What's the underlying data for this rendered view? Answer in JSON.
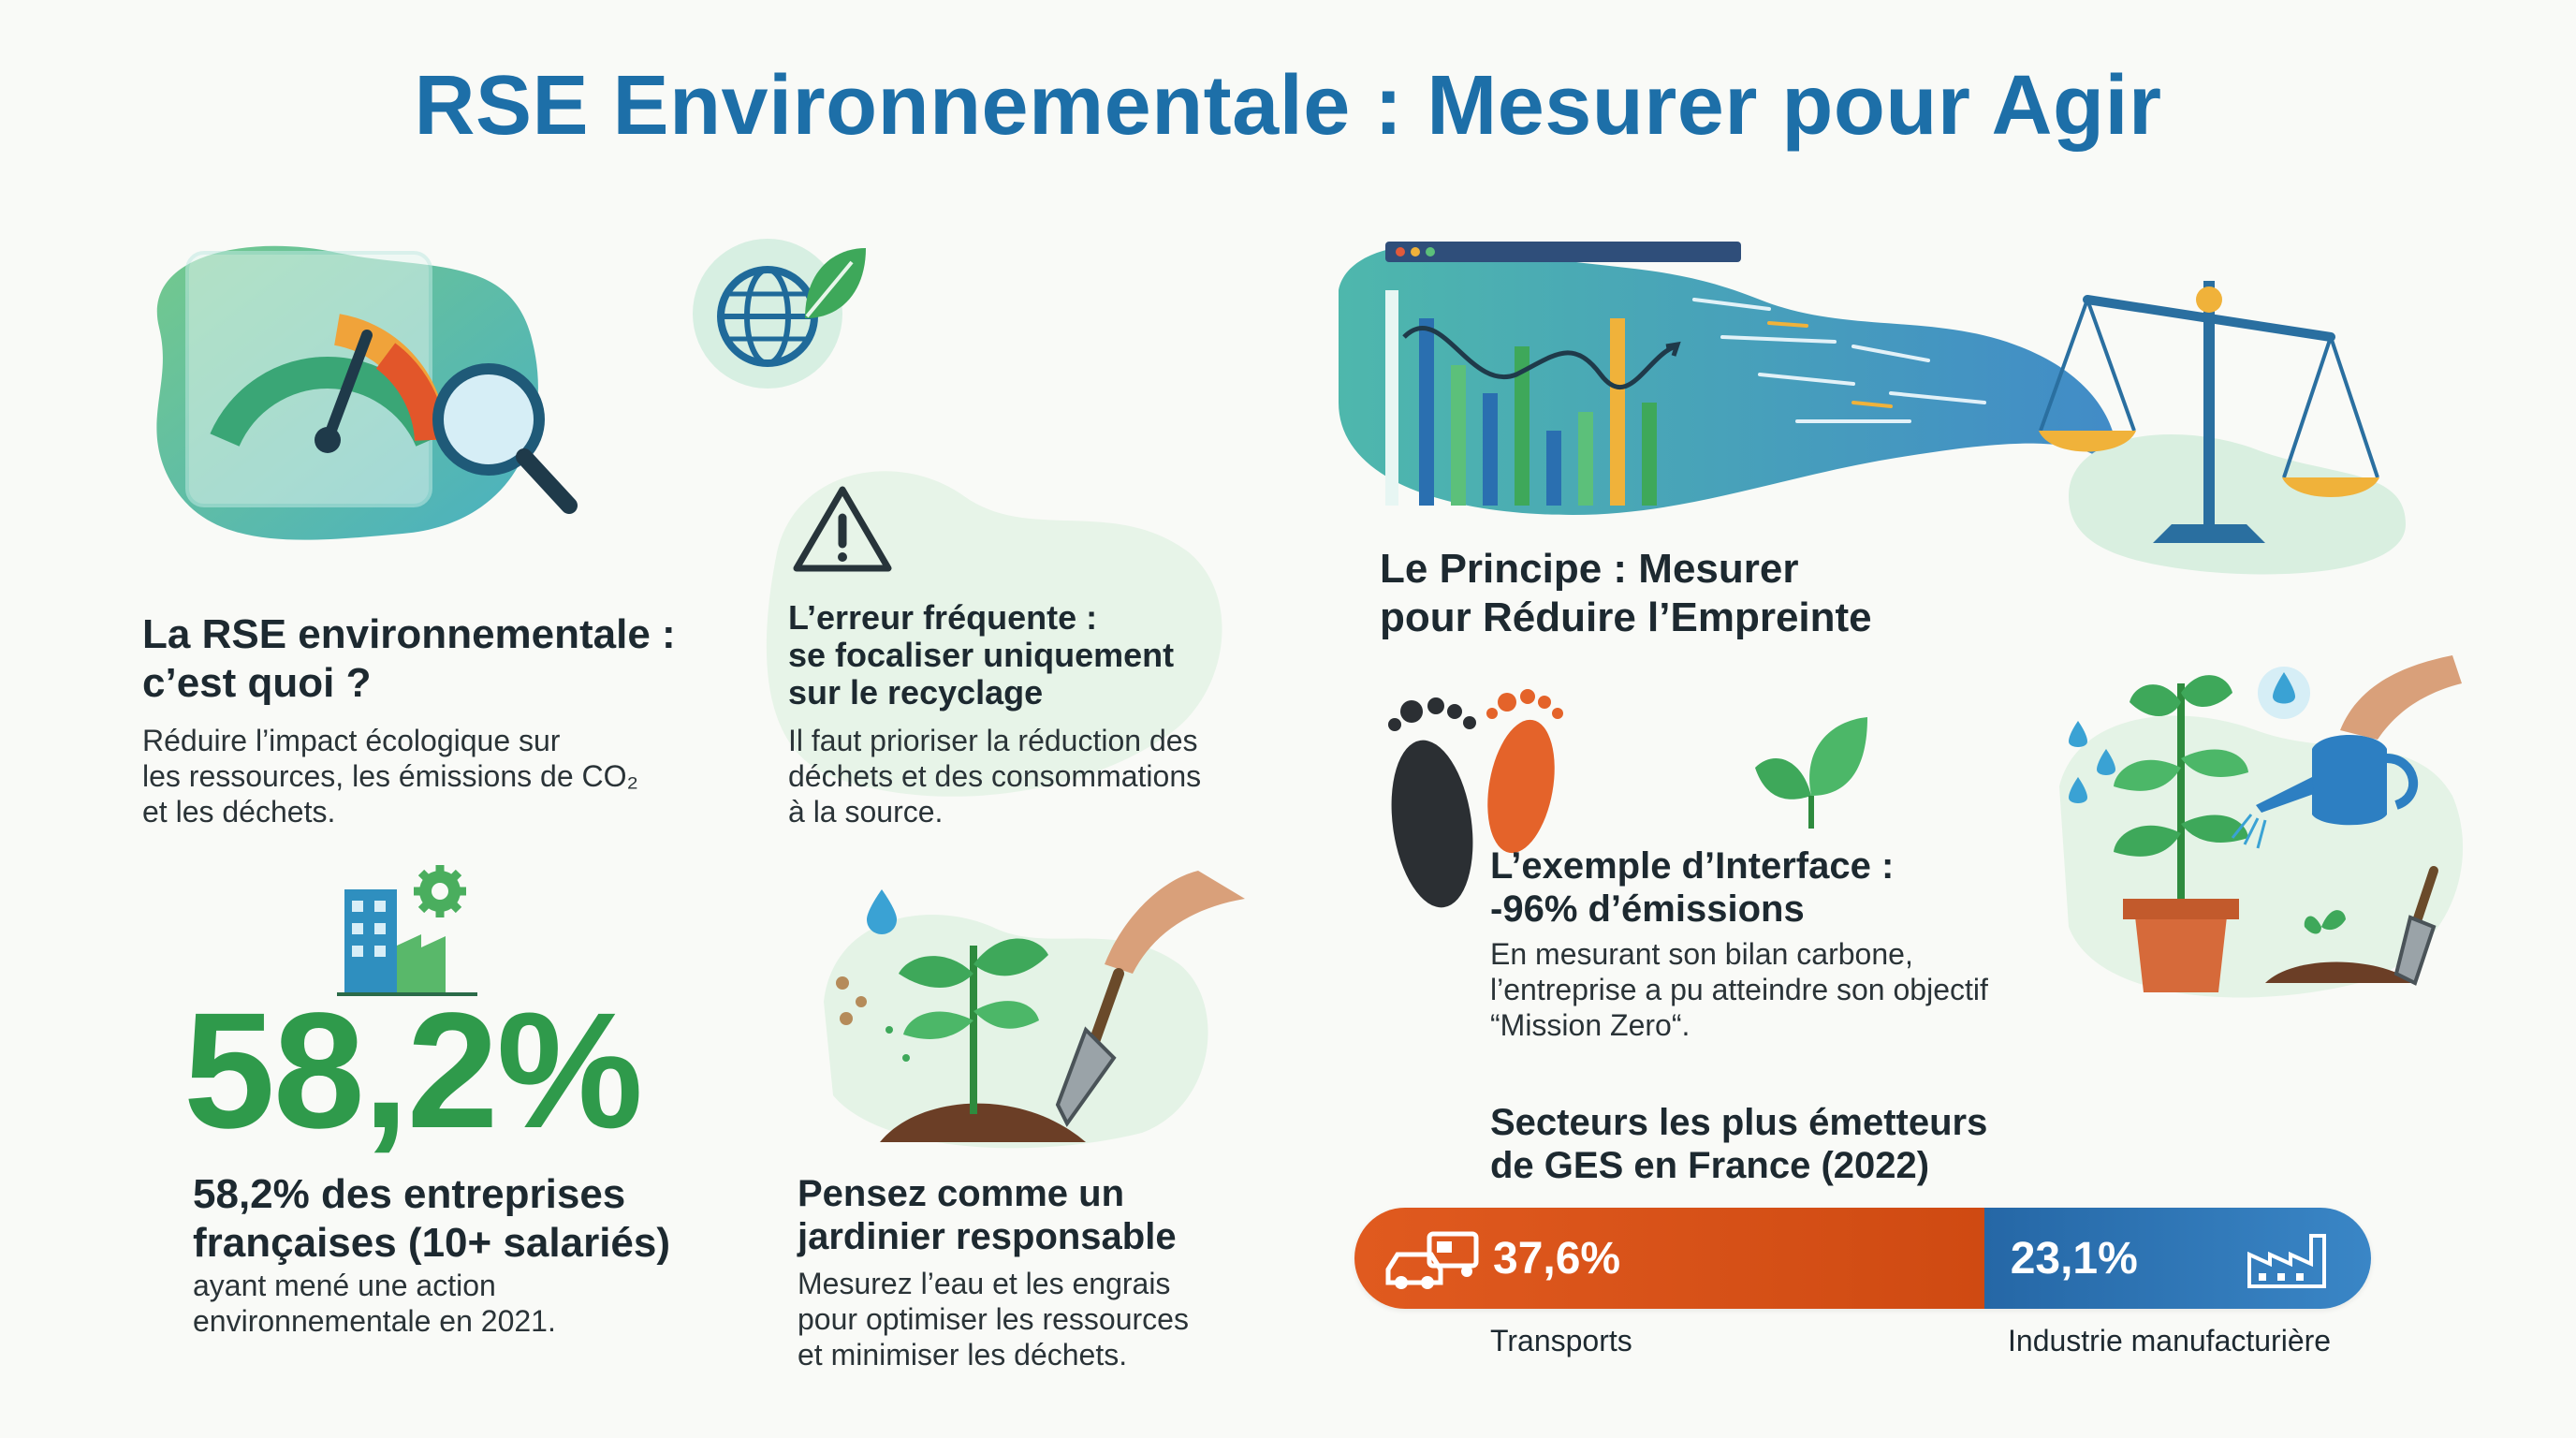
{
  "title": "RSE Environnementale : Mesurer pour Agir",
  "definition": {
    "heading_line1": "La RSE environnementale :",
    "heading_line2": "c’est quoi ?",
    "body_line1": "Réduire l’impact écologique sur",
    "body_line2": "les ressources, les émissions de CO₂",
    "body_line3": "et les déchets."
  },
  "error": {
    "heading_line1": "L’erreur fréquente :",
    "heading_line2": "se focaliser uniquement",
    "heading_line3": "sur le recyclage",
    "body_line1": "Il faut prioriser la réduction des",
    "body_line2": "déchets et des consommations",
    "body_line3": "à la source."
  },
  "stat": {
    "value": "58,2%",
    "heading_line1": "58,2% des entreprises",
    "heading_line2": "françaises (10+ salariés)",
    "body_line1": "ayant mené une action",
    "body_line2": "environnementale en 2021."
  },
  "gardener": {
    "heading_line1": "Pensez comme un",
    "heading_line2": "jardinier responsable",
    "body_line1": "Mesurez l’eau et les engrais",
    "body_line2": "pour optimiser les ressources",
    "body_line3": "et minimiser les déchets."
  },
  "principle": {
    "heading_line1": "Le Principe : Mesurer",
    "heading_line2": "pour Réduire l’Empreinte"
  },
  "interface": {
    "heading_line1": "L’exemple d’Interface :",
    "heading_line2": "-96% d’émissions",
    "body_line1": "En mesurant son bilan carbone,",
    "body_line2": "l’entreprise a pu atteindre son objectif",
    "body_line3": "“Mission Zero“."
  },
  "sectors": {
    "heading_line1": "Secteurs les plus émetteurs",
    "heading_line2": "de GES en France (2022)",
    "items": [
      {
        "percent": "37,6%",
        "label": "Transports",
        "share": 37.6,
        "color": "#d9511a",
        "icon": "car-truck-icon"
      },
      {
        "percent": "23,1%",
        "label": "Industrie manufacturière",
        "share": 23.1,
        "color": "#2f78b8",
        "icon": "factory-icon"
      }
    ]
  },
  "icons": {
    "gauge": "gauge-magnifier-icon",
    "globe": "globe-leaf-icon",
    "warning": "warning-icon",
    "dashboard": "dashboard-chart-icon",
    "scale": "balance-scale-icon",
    "footprints": "footprints-icon",
    "leaf": "leaf-icon",
    "building": "building-gear-icon",
    "seedling": "seedling-trowel-icon",
    "plant_watering": "plant-watering-icon"
  }
}
